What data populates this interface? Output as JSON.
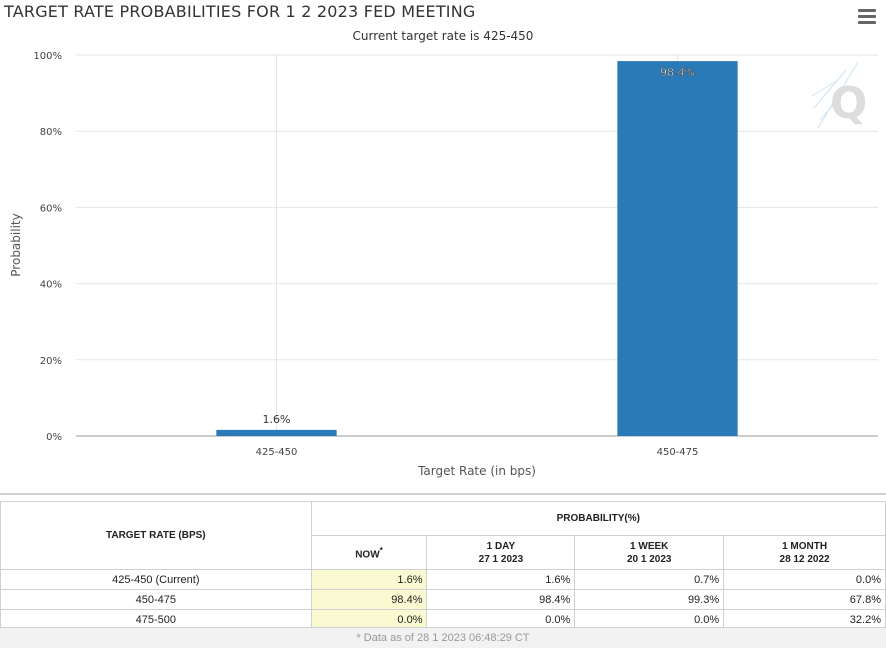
{
  "title": "TARGET RATE PROBABILITIES FOR 1 2 2023 FED MEETING",
  "subtitle": "Current target rate is 425-450",
  "chart_data": {
    "type": "bar",
    "categories": [
      "425-450",
      "450-475"
    ],
    "values": [
      1.6,
      98.4
    ],
    "data_labels": [
      "1.6%",
      "98.4%"
    ],
    "ylabel": "Probability",
    "xlabel": "Target Rate (in bps)",
    "ylim": [
      0,
      100
    ],
    "yticks": [
      "0%",
      "20%",
      "40%",
      "60%",
      "80%",
      "100%"
    ],
    "grid": true,
    "bar_color": "#2a7ab8"
  },
  "table": {
    "target_rate_header": "TARGET RATE (BPS)",
    "probability_header": "PROBABILITY(%)",
    "columns": [
      {
        "label": "NOW",
        "sup": "*",
        "date": ""
      },
      {
        "label": "1 DAY",
        "sup": "",
        "date": "27 1 2023"
      },
      {
        "label": "1 WEEK",
        "sup": "",
        "date": "20 1 2023"
      },
      {
        "label": "1 MONTH",
        "sup": "",
        "date": "28 12 2022"
      }
    ],
    "rows": [
      {
        "rate": "425-450 (Current)",
        "values": [
          "1.6%",
          "1.6%",
          "0.7%",
          "0.0%"
        ]
      },
      {
        "rate": "450-475",
        "values": [
          "98.4%",
          "98.4%",
          "99.3%",
          "67.8%"
        ]
      },
      {
        "rate": "475-500",
        "values": [
          "0.0%",
          "0.0%",
          "0.0%",
          "32.2%"
        ]
      }
    ],
    "footnote": "* Data as of 28 1 2023 06:48:29 CT"
  }
}
